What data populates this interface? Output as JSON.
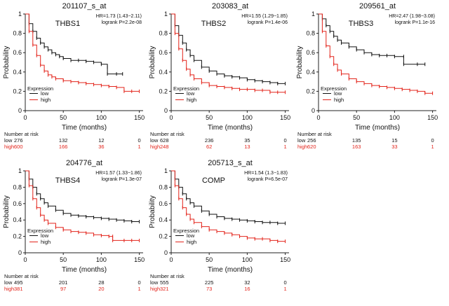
{
  "colors": {
    "low": "#111111",
    "high": "#e3241b",
    "axis": "#222222"
  },
  "chart_data": [
    {
      "type": "line",
      "title": "201107_s_at",
      "gene": "THBS1",
      "hr_text": "HR=1.73 (1.43−2.11)",
      "logrank_text": "logrank P=2.2e-08",
      "xlabel": "Time (months)",
      "ylabel": "Probability",
      "xlim": [
        0,
        155
      ],
      "ylim": [
        0,
        1
      ],
      "xticks": [
        0,
        50,
        100,
        150
      ],
      "yticks": [
        0.0,
        0.2,
        0.4,
        0.6,
        0.8,
        1.0
      ],
      "legend": {
        "title": "Expression",
        "position": "bottom-left"
      },
      "series": [
        {
          "name": "low",
          "color": "#111111",
          "x": [
            0,
            5,
            10,
            15,
            20,
            25,
            30,
            35,
            40,
            45,
            50,
            60,
            70,
            80,
            90,
            100,
            108,
            108,
            120,
            128
          ],
          "y": [
            1.0,
            0.9,
            0.82,
            0.75,
            0.7,
            0.66,
            0.63,
            0.6,
            0.58,
            0.56,
            0.54,
            0.52,
            0.52,
            0.51,
            0.5,
            0.48,
            0.45,
            0.38,
            0.38,
            0.38
          ]
        },
        {
          "name": "high",
          "color": "#e3241b",
          "x": [
            0,
            5,
            10,
            15,
            20,
            25,
            30,
            35,
            40,
            50,
            60,
            70,
            80,
            90,
            100,
            110,
            120,
            130,
            140,
            150
          ],
          "y": [
            1.0,
            0.82,
            0.68,
            0.57,
            0.47,
            0.41,
            0.37,
            0.35,
            0.33,
            0.31,
            0.3,
            0.29,
            0.28,
            0.27,
            0.26,
            0.25,
            0.24,
            0.2,
            0.2,
            0.2
          ]
        }
      ],
      "risk": {
        "header": "Number at risk",
        "times": [
          0,
          50,
          100,
          150
        ],
        "rows": [
          {
            "label": "low",
            "values": [
              "276",
              "132",
              "12",
              "0"
            ]
          },
          {
            "label": "high",
            "values": [
              "600",
              "166",
              "36",
              "1"
            ]
          }
        ]
      }
    },
    {
      "type": "line",
      "title": "203083_at",
      "gene": "THBS2",
      "hr_text": "HR=1.55 (1.29−1.85)",
      "logrank_text": "logrank P=1.4e-06",
      "xlabel": "Time (months)",
      "ylabel": "Probability",
      "xlim": [
        0,
        155
      ],
      "ylim": [
        0,
        1
      ],
      "xticks": [
        0,
        50,
        100,
        150
      ],
      "yticks": [
        0.0,
        0.2,
        0.4,
        0.6,
        0.8,
        1.0
      ],
      "legend": {
        "title": "Expression",
        "position": "bottom-left"
      },
      "series": [
        {
          "name": "low",
          "color": "#111111",
          "x": [
            0,
            5,
            10,
            15,
            20,
            25,
            30,
            40,
            50,
            60,
            70,
            80,
            90,
            100,
            110,
            120,
            130,
            140,
            150
          ],
          "y": [
            1.0,
            0.88,
            0.78,
            0.7,
            0.63,
            0.57,
            0.52,
            0.45,
            0.41,
            0.38,
            0.36,
            0.35,
            0.34,
            0.32,
            0.31,
            0.3,
            0.29,
            0.28,
            0.28
          ]
        },
        {
          "name": "high",
          "color": "#e3241b",
          "x": [
            0,
            5,
            10,
            15,
            20,
            25,
            30,
            40,
            50,
            60,
            70,
            80,
            90,
            100,
            110,
            120,
            130,
            140,
            150
          ],
          "y": [
            1.0,
            0.8,
            0.64,
            0.52,
            0.43,
            0.37,
            0.33,
            0.29,
            0.26,
            0.25,
            0.24,
            0.23,
            0.22,
            0.22,
            0.21,
            0.21,
            0.19,
            0.19,
            0.19
          ]
        }
      ],
      "risk": {
        "header": "Number at risk",
        "times": [
          0,
          50,
          100,
          150
        ],
        "rows": [
          {
            "label": "low",
            "values": [
              "628",
              "236",
              "35",
              "0"
            ]
          },
          {
            "label": "high",
            "values": [
              "248",
              "62",
              "13",
              "1"
            ]
          }
        ]
      }
    },
    {
      "type": "line",
      "title": "209561_at",
      "gene": "THBS3",
      "hr_text": "HR=2.47 (1.98−3.08)",
      "logrank_text": "logrank P=1.1e-16",
      "xlabel": "Time (months)",
      "ylabel": "Probability",
      "xlim": [
        0,
        155
      ],
      "ylim": [
        0,
        1
      ],
      "xticks": [
        0,
        50,
        100,
        150
      ],
      "yticks": [
        0.0,
        0.2,
        0.4,
        0.6,
        0.8,
        1.0
      ],
      "legend": {
        "title": "Expression",
        "position": "bottom-left"
      },
      "series": [
        {
          "name": "low",
          "color": "#111111",
          "x": [
            0,
            5,
            10,
            15,
            20,
            25,
            30,
            40,
            50,
            60,
            70,
            80,
            90,
            100,
            112,
            112,
            130,
            140
          ],
          "y": [
            1.0,
            0.95,
            0.88,
            0.82,
            0.77,
            0.73,
            0.7,
            0.66,
            0.63,
            0.6,
            0.58,
            0.57,
            0.57,
            0.56,
            0.56,
            0.48,
            0.48,
            0.48
          ]
        },
        {
          "name": "high",
          "color": "#e3241b",
          "x": [
            0,
            5,
            10,
            15,
            20,
            25,
            30,
            40,
            50,
            60,
            70,
            80,
            90,
            100,
            110,
            120,
            130,
            140,
            150
          ],
          "y": [
            1.0,
            0.82,
            0.67,
            0.56,
            0.48,
            0.42,
            0.38,
            0.33,
            0.3,
            0.28,
            0.26,
            0.25,
            0.24,
            0.23,
            0.22,
            0.21,
            0.2,
            0.18,
            0.18
          ]
        }
      ],
      "risk": {
        "header": "Number at risk",
        "times": [
          0,
          50,
          100,
          150
        ],
        "rows": [
          {
            "label": "low",
            "values": [
              "256",
              "135",
              "15",
              "0"
            ]
          },
          {
            "label": "high",
            "values": [
              "620",
              "163",
              "33",
              "1"
            ]
          }
        ]
      }
    },
    {
      "type": "line",
      "title": "204776_at",
      "gene": "THBS4",
      "hr_text": "HR=1.57 (1.33−1.86)",
      "logrank_text": "logrank P=1.3e-07",
      "xlabel": "Time (months)",
      "ylabel": "Probability",
      "xlim": [
        0,
        155
      ],
      "ylim": [
        0,
        1
      ],
      "xticks": [
        0,
        50,
        100,
        150
      ],
      "yticks": [
        0.0,
        0.2,
        0.4,
        0.6,
        0.8,
        1.0
      ],
      "legend": {
        "title": "Expression",
        "position": "bottom-left"
      },
      "series": [
        {
          "name": "low",
          "color": "#111111",
          "x": [
            0,
            5,
            10,
            15,
            20,
            25,
            30,
            40,
            50,
            60,
            70,
            80,
            90,
            100,
            110,
            120,
            130,
            140,
            150
          ],
          "y": [
            1.0,
            0.9,
            0.8,
            0.72,
            0.66,
            0.61,
            0.57,
            0.52,
            0.48,
            0.46,
            0.45,
            0.44,
            0.43,
            0.42,
            0.41,
            0.4,
            0.39,
            0.38,
            0.38
          ]
        },
        {
          "name": "high",
          "color": "#e3241b",
          "x": [
            0,
            5,
            10,
            15,
            20,
            25,
            30,
            40,
            50,
            60,
            70,
            80,
            90,
            100,
            110,
            115,
            115,
            130,
            140,
            150
          ],
          "y": [
            1.0,
            0.82,
            0.66,
            0.55,
            0.46,
            0.4,
            0.36,
            0.31,
            0.28,
            0.26,
            0.25,
            0.24,
            0.22,
            0.21,
            0.2,
            0.2,
            0.15,
            0.15,
            0.15,
            0.15
          ]
        }
      ],
      "risk": {
        "header": "Number at risk",
        "times": [
          0,
          50,
          100,
          150
        ],
        "rows": [
          {
            "label": "low",
            "values": [
              "495",
              "201",
              "28",
              "0"
            ]
          },
          {
            "label": "high",
            "values": [
              "381",
              "97",
              "20",
              "1"
            ]
          }
        ]
      }
    },
    {
      "type": "line",
      "title": "205713_s_at",
      "gene": "COMP",
      "hr_text": "HR=1.54 (1.3−1.83)",
      "logrank_text": "logrank P=6.5e-07",
      "xlabel": "Time (months)",
      "ylabel": "Probability",
      "xlim": [
        0,
        155
      ],
      "ylim": [
        0,
        1
      ],
      "xticks": [
        0,
        50,
        100,
        150
      ],
      "yticks": [
        0.0,
        0.2,
        0.4,
        0.6,
        0.8,
        1.0
      ],
      "legend": {
        "title": "Expression",
        "position": "bottom-left"
      },
      "series": [
        {
          "name": "low",
          "color": "#111111",
          "x": [
            0,
            5,
            10,
            15,
            20,
            25,
            30,
            40,
            50,
            60,
            70,
            80,
            90,
            100,
            110,
            120,
            130,
            140,
            150
          ],
          "y": [
            1.0,
            0.9,
            0.8,
            0.72,
            0.66,
            0.61,
            0.57,
            0.51,
            0.47,
            0.44,
            0.42,
            0.41,
            0.4,
            0.39,
            0.38,
            0.37,
            0.37,
            0.36,
            0.36
          ]
        },
        {
          "name": "high",
          "color": "#e3241b",
          "x": [
            0,
            5,
            10,
            15,
            20,
            25,
            30,
            40,
            50,
            60,
            70,
            80,
            90,
            100,
            110,
            120,
            130,
            140,
            150
          ],
          "y": [
            1.0,
            0.82,
            0.66,
            0.55,
            0.47,
            0.41,
            0.37,
            0.32,
            0.28,
            0.26,
            0.24,
            0.22,
            0.2,
            0.18,
            0.17,
            0.17,
            0.15,
            0.14,
            0.14
          ]
        }
      ],
      "risk": {
        "header": "Number at risk",
        "times": [
          0,
          50,
          100,
          150
        ],
        "rows": [
          {
            "label": "low",
            "values": [
              "555",
              "225",
              "32",
              "0"
            ]
          },
          {
            "label": "high",
            "values": [
              "321",
              "73",
              "16",
              "1"
            ]
          }
        ]
      }
    }
  ]
}
